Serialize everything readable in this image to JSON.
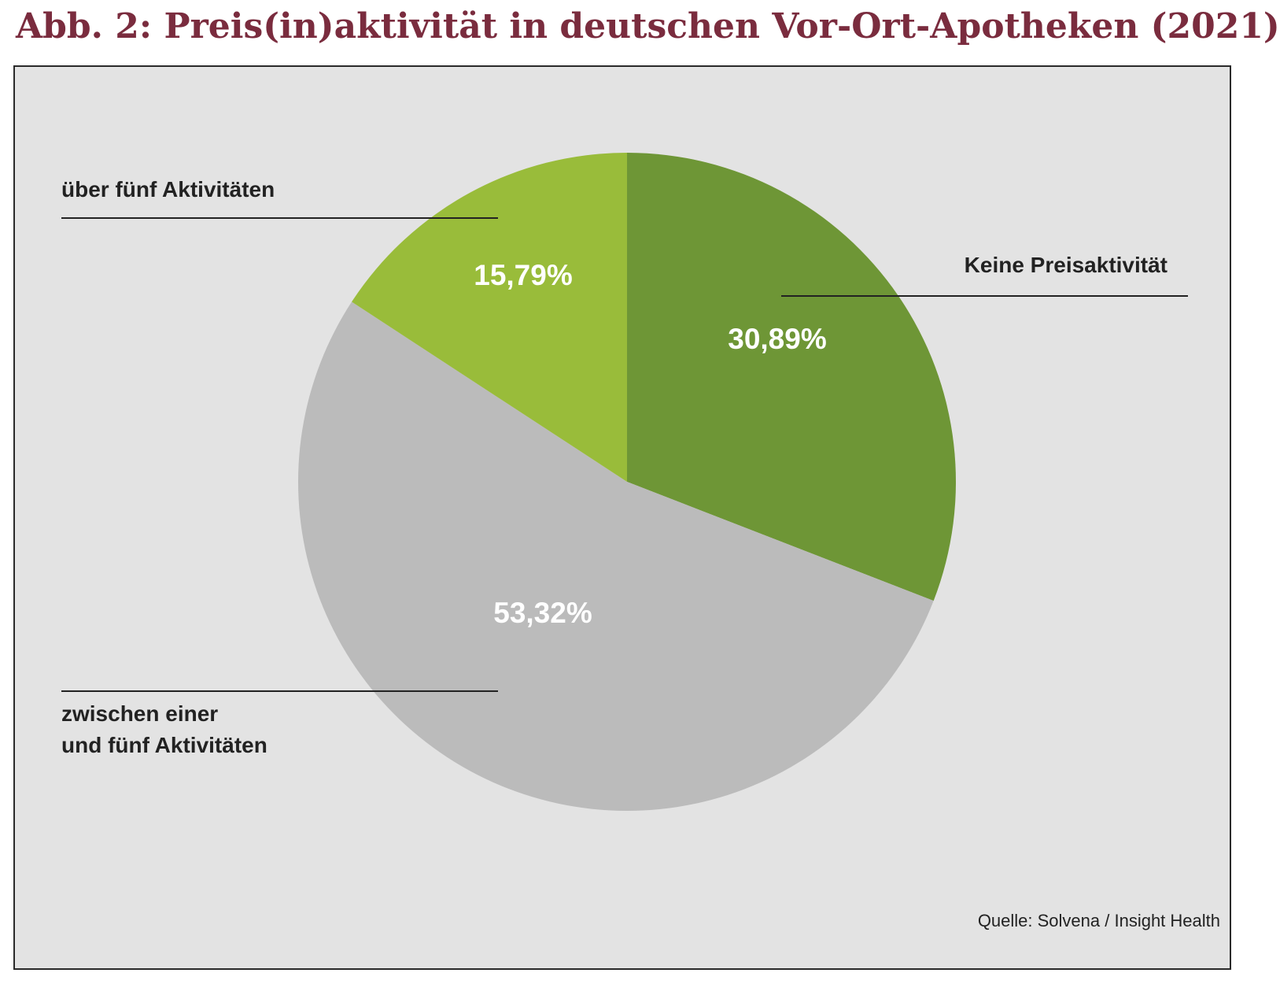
{
  "title": "Abb. 2: Preis(in)aktivität in deutschen Vor-Ort-Apotheken (2021)",
  "source": "Quelle: Solvena / Insight Health",
  "chart_data": {
    "type": "pie",
    "title": "Abb. 2: Preis(in)aktivität in deutschen Vor-Ort-Apotheken (2021)",
    "slices": [
      {
        "label": "Keine Preisaktivität",
        "label_lines": [
          "Keine Preisaktivität"
        ],
        "value": 30.89,
        "value_label": "30,89%",
        "color": "#6e9636"
      },
      {
        "label": "zwischen einer und fünf Aktivitäten",
        "label_lines": [
          "zwischen einer",
          "und fünf Aktivitäten"
        ],
        "value": 53.32,
        "value_label": "53,32%",
        "color": "#bbbbbb"
      },
      {
        "label": "über fünf Aktivitäten",
        "label_lines": [
          "über fünf Aktivitäten"
        ],
        "value": 15.79,
        "value_label": "15,79%",
        "color": "#99bc3a"
      }
    ],
    "start_angle": "12 o'clock",
    "direction": "clockwise",
    "legend": "none"
  }
}
